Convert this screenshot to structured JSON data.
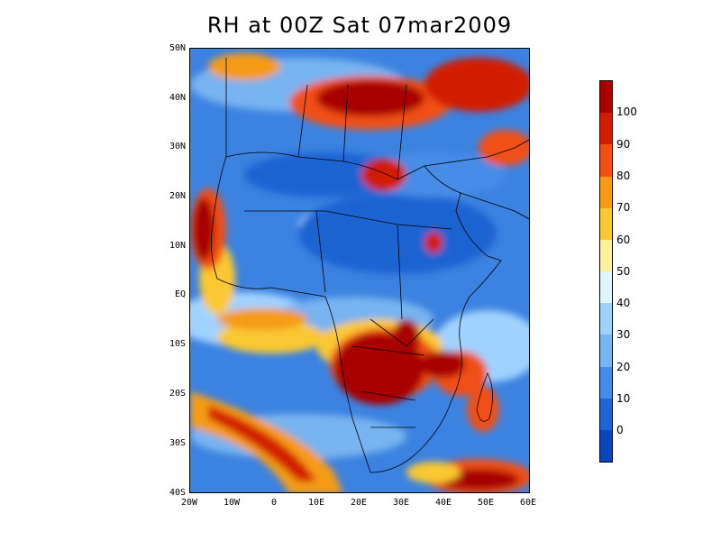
{
  "title": "RH at 00Z Sat 07mar2009",
  "axes": {
    "y_labels": [
      "50N",
      "40N",
      "30N",
      "20N",
      "10N",
      "EQ",
      "10S",
      "20S",
      "30S",
      "40S"
    ],
    "x_labels": [
      "20W",
      "10W",
      "0",
      "10E",
      "20E",
      "30E",
      "40E",
      "50E",
      "60E"
    ]
  },
  "colorbar": {
    "labels": [
      "100",
      "90",
      "80",
      "70",
      "60",
      "50",
      "40",
      "30",
      "20",
      "10",
      "0"
    ],
    "colors": [
      "#a80000",
      "#d21e00",
      "#f05014",
      "#f59b14",
      "#fac832",
      "#fff09b",
      "#e1f5ff",
      "#a0d2ff",
      "#78b4f0",
      "#468ce6",
      "#1e64d2",
      "#0a46b9"
    ]
  },
  "map": {
    "lon_range": [
      -20,
      60
    ],
    "lat_range": [
      -40,
      50
    ],
    "ocean_color": "#3c82e0",
    "border_color": "#000000"
  }
}
